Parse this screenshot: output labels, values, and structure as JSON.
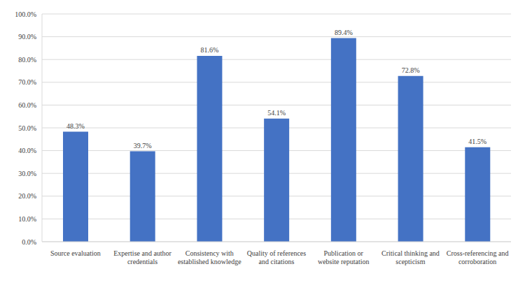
{
  "chart_data": {
    "type": "bar",
    "categories": [
      "Source evaluation",
      "Expertise and author credentials",
      "Consistency with established knowledge",
      "Quality of references and citations",
      "Publication or website reputation",
      "Critical thinking and scepticism",
      "Cross-referencing and corroboration"
    ],
    "values": [
      48.3,
      39.7,
      81.6,
      54.1,
      89.4,
      72.8,
      41.5
    ],
    "value_labels": [
      "48.3%",
      "39.7%",
      "81.6%",
      "54.1%",
      "89.4%",
      "72.8%",
      "41.5%"
    ],
    "color": "#4472c4",
    "ylim": [
      0,
      100
    ],
    "yticks": [
      {
        "value": 0,
        "label": "0.0%"
      },
      {
        "value": 10,
        "label": "10.0%"
      },
      {
        "value": 20,
        "label": "20.0%"
      },
      {
        "value": 30,
        "label": "30.0%"
      },
      {
        "value": 40,
        "label": "40.0%"
      },
      {
        "value": 50,
        "label": "50.0%"
      },
      {
        "value": 60,
        "label": "60.0%"
      },
      {
        "value": 70,
        "label": "70.0%"
      },
      {
        "value": 80,
        "label": "80.0%"
      },
      {
        "value": 90,
        "label": "90.0%"
      },
      {
        "value": 100,
        "label": "100.0%"
      }
    ],
    "grid": true,
    "data_labels": true
  }
}
